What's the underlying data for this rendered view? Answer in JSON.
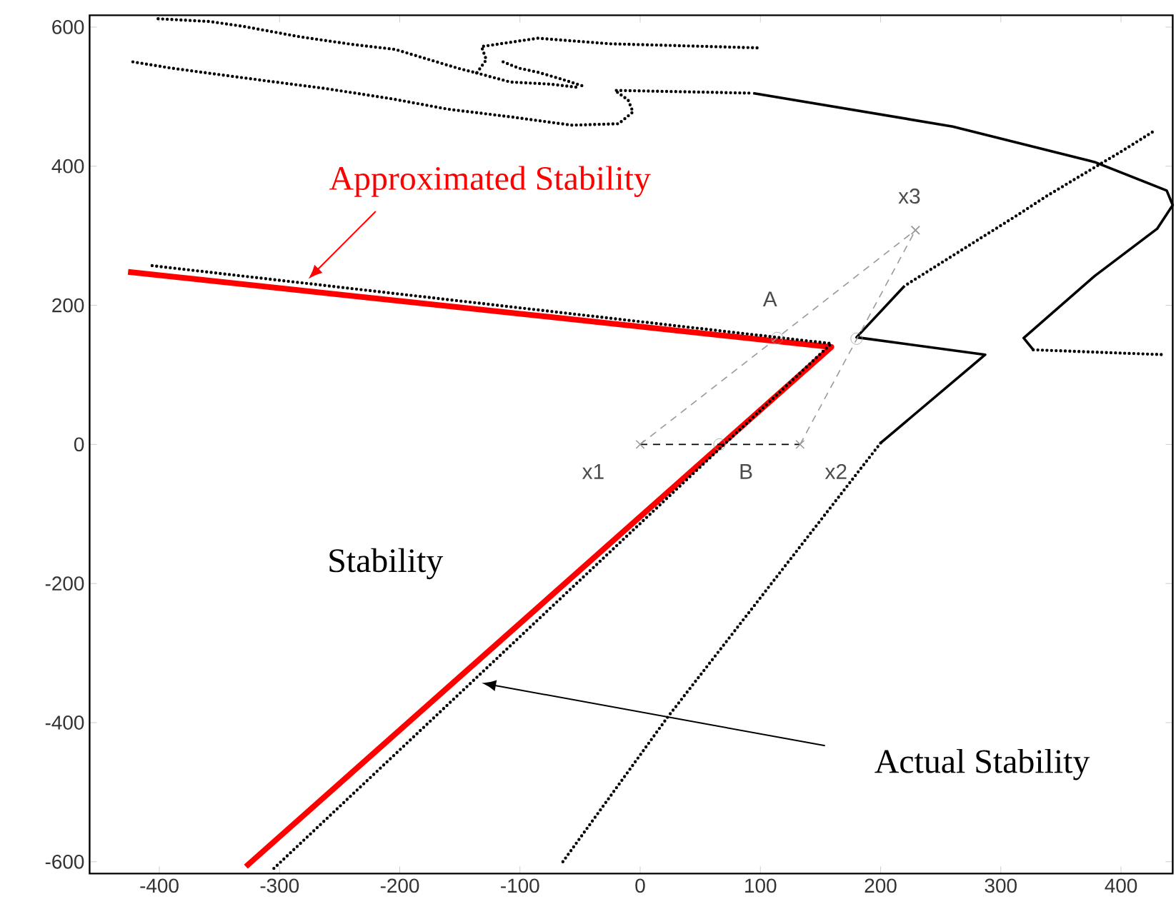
{
  "chart_data": {
    "type": "line",
    "xlim": [
      -458,
      443
    ],
    "ylim": [
      -617,
      617
    ],
    "xticks": [
      -400,
      -300,
      -200,
      -100,
      0,
      100,
      200,
      300,
      400
    ],
    "yticks": [
      -600,
      -400,
      -200,
      0,
      200,
      400,
      600
    ],
    "series": [
      {
        "color": "#ff0000",
        "line_style": "solid",
        "marker": "none",
        "x": [
          -426,
          159,
          -328
        ],
        "values": [
          248,
          140,
          -607
        ]
      },
      {
        "type": "line",
        "color": "#000000",
        "line_style": "dotted",
        "marker": "none",
        "x": [
          -406,
          159,
          -305
        ],
        "values": [
          257,
          145,
          -610
        ]
      },
      {
        "type": "line",
        "color": "#000000",
        "line_style": "dotted",
        "marker": "none",
        "x": [
          426,
          402,
          371,
          339,
          315,
          220
        ],
        "values": [
          449,
          423,
          391,
          358,
          331,
          228
        ]
      },
      {
        "type": "line",
        "color": "#000000",
        "line_style": "solid",
        "marker": "none",
        "x": [
          220,
          180,
          287,
          200
        ],
        "values": [
          228,
          154,
          129,
          2
        ]
      },
      {
        "type": "line",
        "color": "#000000",
        "line_style": "dotted",
        "marker": "none",
        "x": [
          200,
          22,
          -66
        ],
        "values": [
          2,
          -394,
          -604
        ]
      },
      {
        "type": "line",
        "color": "#000000",
        "line_style": "dotted",
        "marker": "none",
        "x": [
          -422,
          -390,
          -360,
          -308,
          -263,
          -207,
          -160,
          -108,
          -57,
          -18,
          -6,
          -10,
          -21,
          94
        ],
        "values": [
          550,
          541,
          534,
          522,
          512,
          497,
          482,
          471,
          459,
          461,
          478,
          495,
          509,
          505
        ]
      },
      {
        "type": "line",
        "color": "#000000",
        "line_style": "solid",
        "marker": "none",
        "x": [
          94,
          260,
          378,
          438,
          443,
          430,
          378,
          319,
          327
        ],
        "values": [
          505,
          457,
          406,
          365,
          344,
          310,
          242,
          153,
          136
        ]
      },
      {
        "type": "line",
        "color": "#000000",
        "line_style": "dotted",
        "marker": "none",
        "x": [
          327,
          436
        ],
        "values": [
          136,
          129
        ]
      },
      {
        "type": "line",
        "color": "#000000",
        "line_style": "dotted",
        "marker": "none",
        "x": [
          -401,
          -358,
          -330,
          -283,
          -239,
          -204,
          -152,
          -136,
          -128,
          -132,
          -85,
          -25,
          101
        ],
        "values": [
          612,
          608,
          601,
          586,
          575,
          568,
          541,
          534,
          553,
          572,
          584,
          576,
          570
        ]
      },
      {
        "type": "line",
        "color": "#000000",
        "line_style": "dotted",
        "marker": "none",
        "x": [
          -114,
          -101,
          -85,
          -67,
          -47
        ],
        "values": [
          550,
          541,
          535,
          526,
          515
        ]
      },
      {
        "type": "line",
        "color": "#000000",
        "line_style": "dotted",
        "marker": "none",
        "x": [
          -136,
          -108,
          -75,
          -50
        ],
        "values": [
          534,
          521,
          518,
          513
        ]
      },
      {
        "type": "line",
        "color": "#999999",
        "line_style": "dashed",
        "marker": "cross",
        "x": [
          0,
          229
        ],
        "values": [
          0,
          308
        ]
      },
      {
        "type": "line",
        "color": "#999999",
        "line_style": "dashed",
        "marker": "cross",
        "x": [
          133,
          229
        ],
        "values": [
          0,
          308
        ]
      },
      {
        "type": "line",
        "color": "#000000",
        "line_style": "dashed",
        "marker": "none",
        "x": [
          0,
          133
        ],
        "values": [
          0,
          0
        ]
      },
      {
        "type": "scatter",
        "color": "#999999",
        "marker": "circle",
        "x": [
          114,
          180,
          66
        ],
        "values": [
          153,
          152,
          0
        ]
      }
    ],
    "annotations": [
      {
        "text": "Approximated Stability",
        "x": -276,
        "y": 238
      },
      "Stability",
      "Actual Stability",
      {
        "text": "x1",
        "x": 0,
        "y": 0
      },
      {
        "text": "B",
        "x": 66,
        "y": 0
      },
      {
        "text": "x2",
        "x": 133,
        "y": 0
      },
      {
        "text": "x3",
        "x": 229,
        "y": 308
      },
      {
        "text": "A",
        "x": 114,
        "y": 163
      }
    ]
  }
}
